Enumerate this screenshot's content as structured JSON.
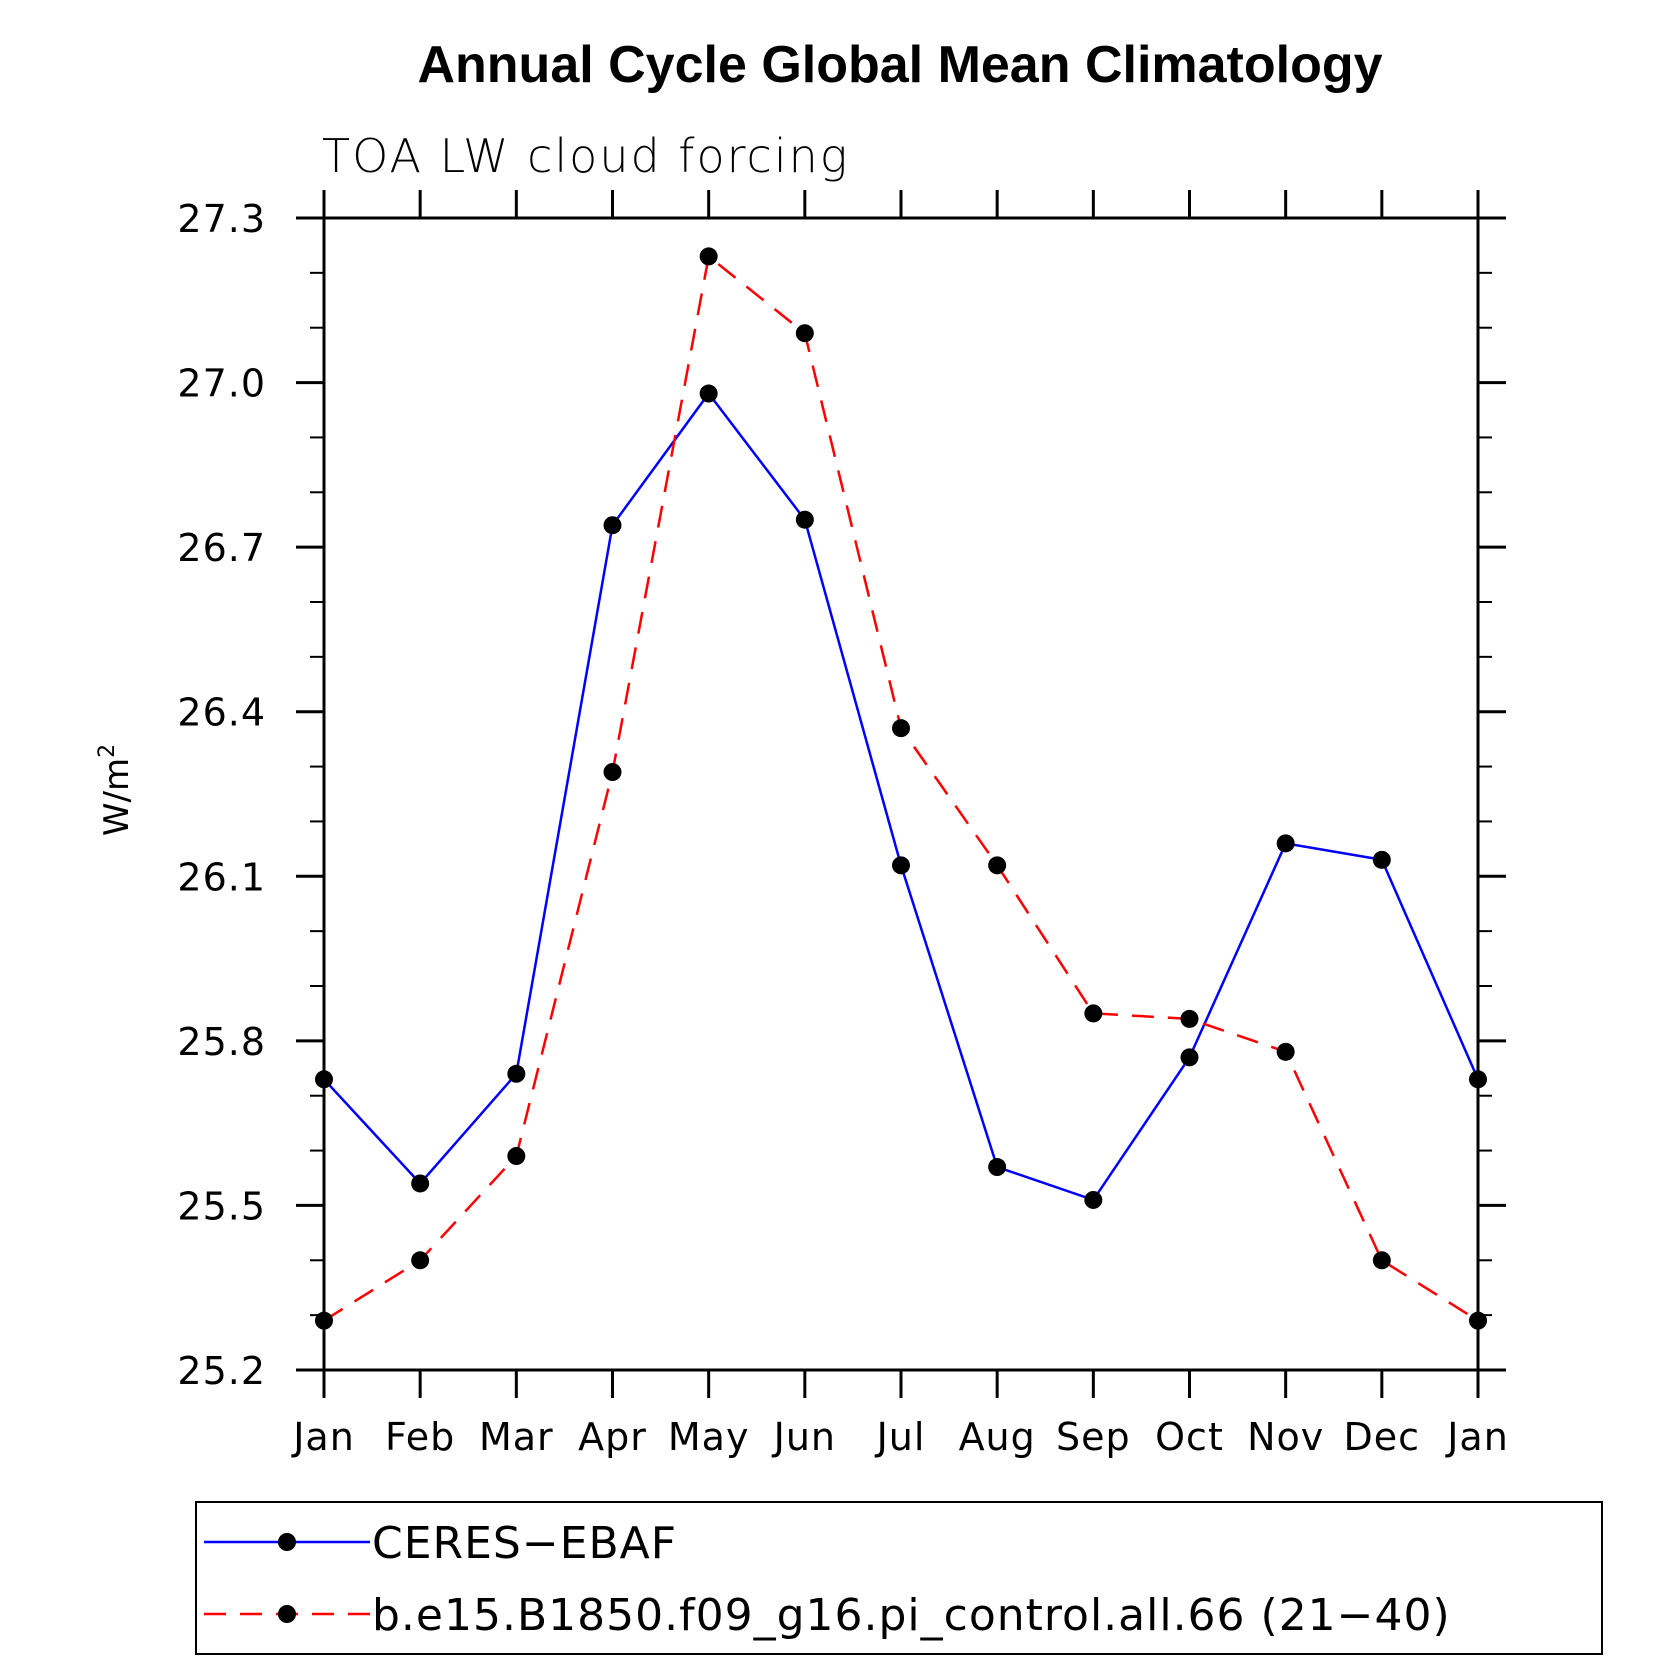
{
  "chart_data": {
    "type": "line",
    "title": "Annual Cycle Global Mean Climatology",
    "subtitle": "TOA LW cloud forcing",
    "ylabel": "W/m",
    "ylabel_superscript": "2",
    "categories": [
      "Jan",
      "Feb",
      "Mar",
      "Apr",
      "May",
      "Jun",
      "Jul",
      "Aug",
      "Sep",
      "Oct",
      "Nov",
      "Dec",
      "Jan"
    ],
    "ylim": [
      25.2,
      27.3
    ],
    "yticks": [
      "25.2",
      "25.5",
      "25.8",
      "26.1",
      "26.4",
      "26.7",
      "27.0",
      "27.3"
    ],
    "series": [
      {
        "name": "CERES−EBAF",
        "color": "#0000ff",
        "style": "solid",
        "values": [
          25.73,
          25.54,
          25.74,
          26.74,
          26.98,
          26.75,
          26.12,
          25.57,
          25.51,
          25.77,
          26.16,
          26.13,
          25.73
        ]
      },
      {
        "name": "b.e15.B1850.f09_g16.pi_control.all.66 (21−40)",
        "color": "#ff0000",
        "style": "dashed",
        "values": [
          25.29,
          25.4,
          25.59,
          26.29,
          27.23,
          27.09,
          26.37,
          26.12,
          25.85,
          25.84,
          25.78,
          25.4,
          25.29
        ]
      }
    ],
    "grid": false,
    "legend_position": "bottom"
  }
}
